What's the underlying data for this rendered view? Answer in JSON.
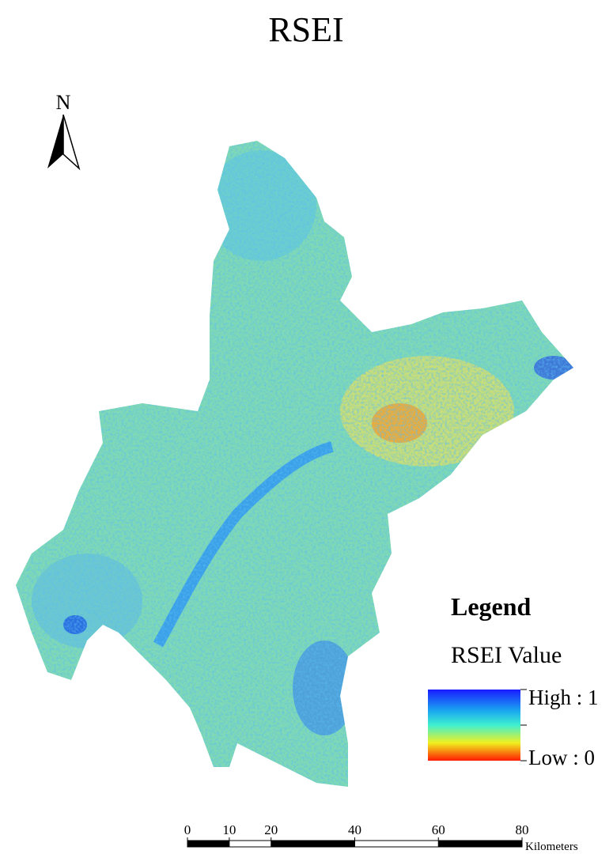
{
  "title": "RSEI",
  "north_arrow": {
    "label": "N"
  },
  "legend": {
    "title": "Legend",
    "subtitle": "RSEI Value",
    "high_label": "High : 1",
    "low_label": "Low : 0"
  },
  "scale_bar": {
    "ticks": [
      0,
      10,
      20,
      40,
      60,
      80
    ],
    "unit": "Kilometers"
  }
}
